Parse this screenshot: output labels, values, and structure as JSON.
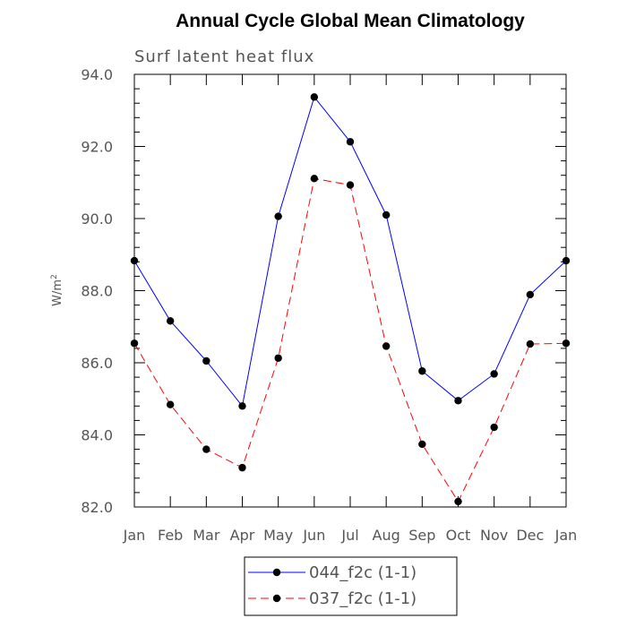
{
  "chart_data": {
    "type": "line",
    "title": "Annual Cycle Global Mean Climatology",
    "subtitle": "Surf latent heat flux",
    "ylabel": "W/m",
    "ylabel_sup": "2",
    "xlabel": "",
    "categories": [
      "Jan",
      "Feb",
      "Mar",
      "Apr",
      "May",
      "Jun",
      "Jul",
      "Aug",
      "Sep",
      "Oct",
      "Nov",
      "Dec",
      "Jan"
    ],
    "ylim": [
      82.0,
      94.0
    ],
    "yticks": [
      "82.0",
      "84.0",
      "86.0",
      "88.0",
      "90.0",
      "92.0",
      "94.0"
    ],
    "grid": false,
    "legend_position": "bottom-center",
    "series": [
      {
        "name": "044_f2c (1-1)",
        "color": "#0000ff",
        "line_style": "solid",
        "marker": "circle",
        "values": [
          88.83,
          87.16,
          86.05,
          84.8,
          90.06,
          93.37,
          92.13,
          90.1,
          85.77,
          84.95,
          85.69,
          87.89,
          88.83
        ]
      },
      {
        "name": "037_f2c (1-1)",
        "color": "#ff0000",
        "line_style": "dashed",
        "marker": "circle",
        "values": [
          86.54,
          84.84,
          83.6,
          83.09,
          86.13,
          91.11,
          90.93,
          86.46,
          83.74,
          82.15,
          84.21,
          86.52,
          86.54
        ]
      }
    ]
  }
}
